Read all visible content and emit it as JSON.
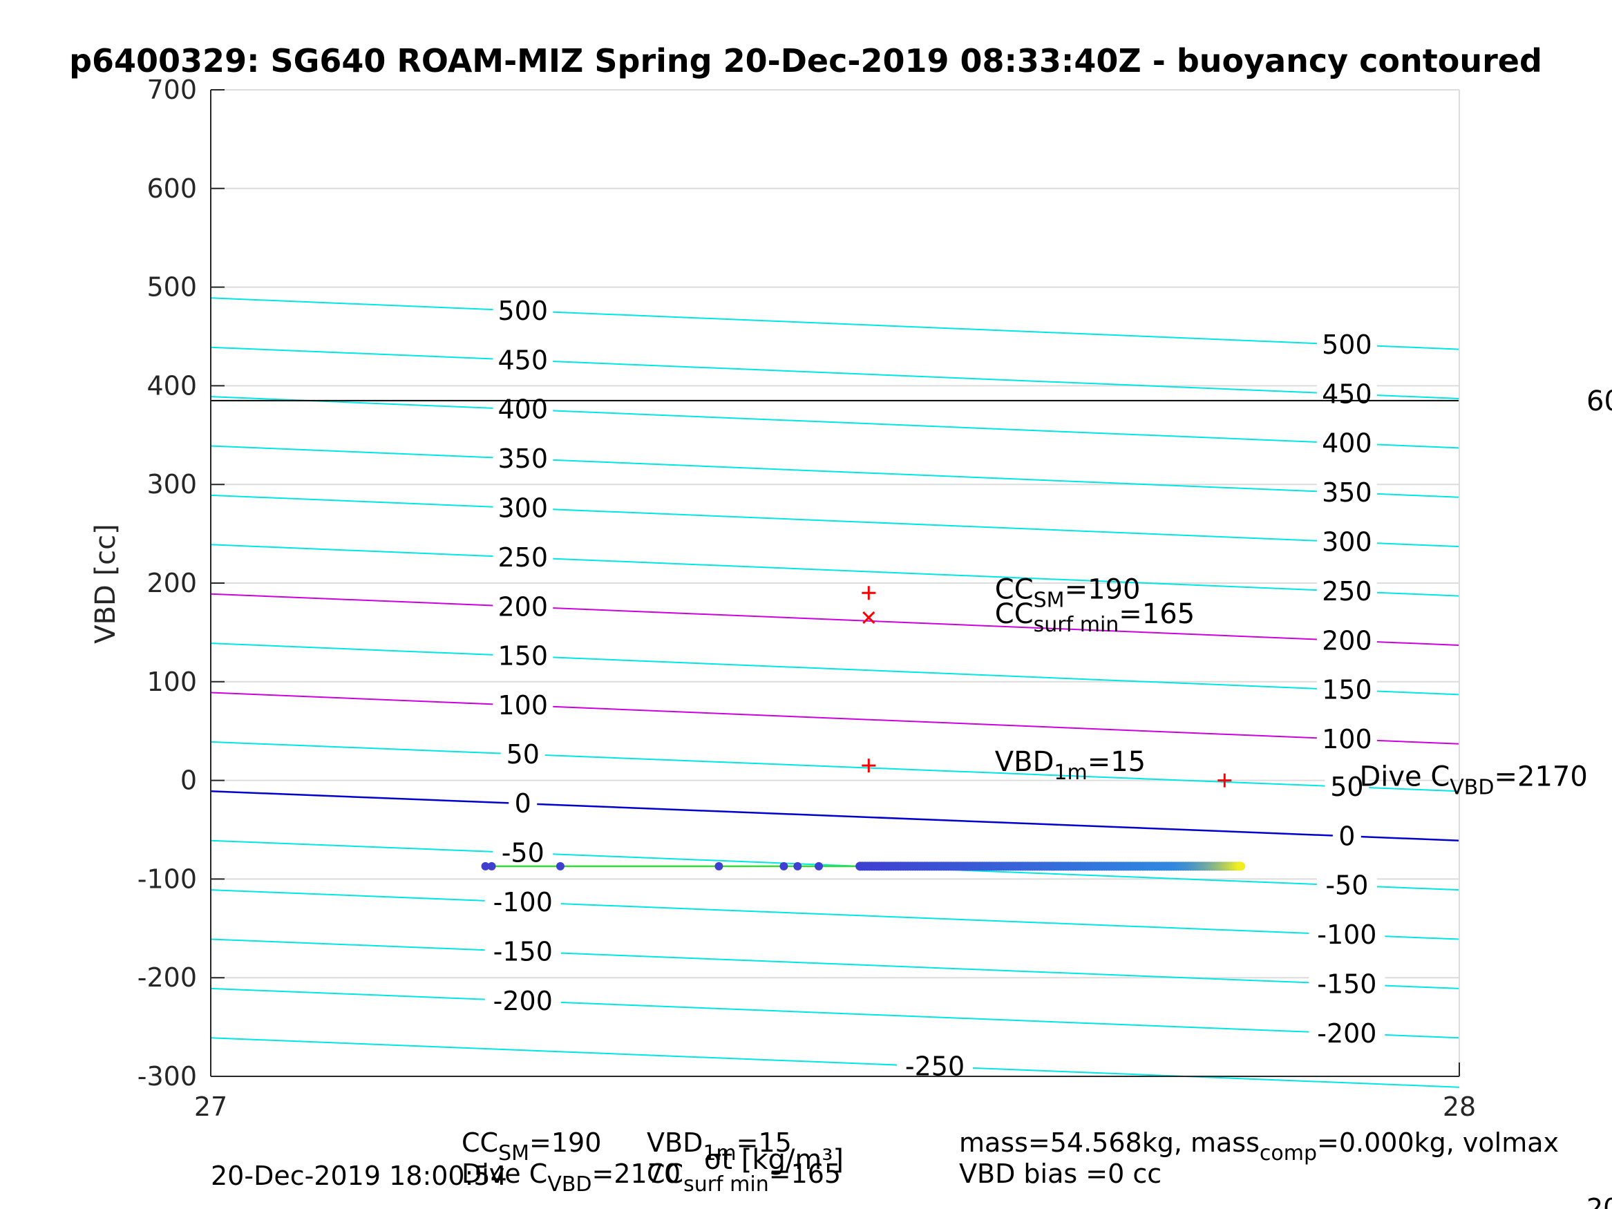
{
  "chart_data": {
    "type": "scatter",
    "title": "p6400329: SG640 ROAM-MIZ Spring 20-Dec-2019 08:33:40Z - buoyancy contoured",
    "xlabel": "σt [kg/m³]",
    "ylabel": "VBD [cc]",
    "xlim": [
      27,
      28
    ],
    "ylim": [
      -300,
      700
    ],
    "xticks": [
      27,
      28
    ],
    "yticks": [
      -300,
      -200,
      -100,
      0,
      100,
      200,
      300,
      400,
      500,
      600,
      700
    ],
    "grid": true,
    "contours": {
      "left_x": 27.0,
      "right_x": 28.0,
      "levels": [
        -250,
        -200,
        -150,
        -100,
        -50,
        0,
        50,
        100,
        150,
        200,
        250,
        300,
        350,
        400,
        450,
        500
      ],
      "left_vbd": [
        -261,
        -211,
        -161,
        -111,
        -61,
        -11,
        39,
        89,
        139,
        189,
        239,
        289,
        339,
        389,
        439,
        489
      ],
      "right_vbd": [
        -311,
        -261,
        -211,
        -161,
        -111,
        -61,
        -11,
        37,
        87,
        137,
        187,
        237,
        287,
        337,
        387,
        437
      ],
      "label_x_left": 27.25,
      "label_x_right": 27.91,
      "left_labels": [
        "-200",
        "-150",
        "-100",
        "-50",
        "0",
        "50",
        "100",
        "150",
        "200",
        "250",
        "300",
        "350",
        "400",
        "450",
        "500"
      ],
      "right_labels": [
        "-200",
        "-150",
        "-100",
        "-50",
        "0",
        "50",
        "100",
        "150",
        "200",
        "250",
        "300",
        "350",
        "400",
        "450",
        "500"
      ],
      "bottom_label": "-250",
      "bottom_label_x": 27.58,
      "zero_color": "#0000cc",
      "highlight_levels": [
        100,
        200
      ],
      "highlight_color": "#cc00dd",
      "default_color": "#00e5e5"
    },
    "reference_line": {
      "vbd": 385,
      "color": "#000000",
      "right_label": "60"
    },
    "fit_line": {
      "vbd": -87,
      "x_start": 27.22,
      "x_end": 27.53,
      "color": "#33dd33"
    },
    "series": [
      {
        "name": "dive samples (colored by depth)",
        "vbd": -87,
        "sparse_x": [
          27.22,
          27.225,
          27.28,
          27.407,
          27.459,
          27.47,
          27.487
        ],
        "dense_x_start": 27.52,
        "dense_x_end": 27.825,
        "dense_count": 160,
        "color_start": "#3f3fd0",
        "color_mid": "#2f86e0",
        "color_end": "#f0ee20"
      }
    ],
    "markers": [
      {
        "name": "CC_SM",
        "x": 27.527,
        "vbd": 190,
        "symbol": "+",
        "color": "#ff0000"
      },
      {
        "name": "CC_surf_min",
        "x": 27.527,
        "vbd": 165,
        "symbol": "x",
        "color": "#ff0000"
      },
      {
        "name": "VBD_1m",
        "x": 27.527,
        "vbd": 15,
        "symbol": "+",
        "color": "#ff0000"
      },
      {
        "name": "Dive C_VBD",
        "x": 27.812,
        "vbd": 0,
        "symbol": "+",
        "color": "#ff0000"
      }
    ],
    "annotations": [
      {
        "main": "CC",
        "sub": "SM",
        "rest": "=190",
        "x": 27.628,
        "vbd": 190
      },
      {
        "main": "CC",
        "sub": "surf min",
        "rest": "=165",
        "x": 27.628,
        "vbd": 165
      },
      {
        "main": "VBD",
        "sub": "1m",
        "rest": "=15",
        "x": 27.628,
        "vbd": 15
      },
      {
        "main": "Dive C",
        "sub": "VBD",
        "rest": "=2170",
        "x": 27.92,
        "vbd": 0
      }
    ],
    "footer": {
      "timestamp": "20-Dec-2019 18:00:54",
      "left_line1": [
        "CC",
        "SM",
        "=190",
        "VBD",
        "1m",
        "=15"
      ],
      "left_line2": [
        "Dive C",
        "VBD",
        "=2170",
        "CC",
        "surf min",
        "=165"
      ],
      "right_line1": [
        "mass=54.568kg, mass",
        "comp",
        "=0.000kg, volmax"
      ],
      "right_line2": "VBD bias =0 cc",
      "corner_fragment": "20"
    }
  }
}
